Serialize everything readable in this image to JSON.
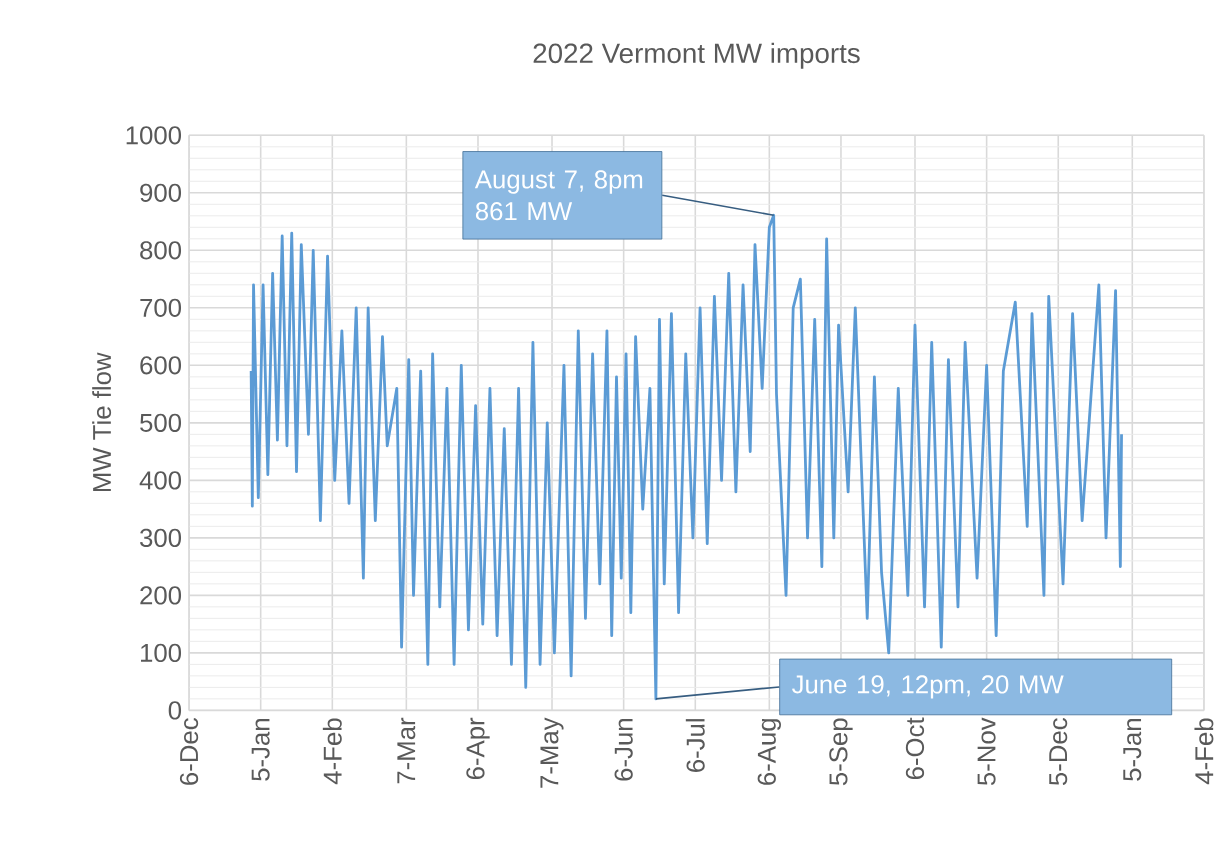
{
  "chart_data": {
    "type": "line",
    "title": "2022 Vermont MW imports",
    "ylabel": "MW Tie flow",
    "xlim": [
      "2021-12-06",
      "2023-02-04"
    ],
    "xticks": [
      {
        "value": "2021-12-06",
        "label": "6-Dec"
      },
      {
        "value": "2022-01-05",
        "label": "5-Jan"
      },
      {
        "value": "2022-02-04",
        "label": "4-Feb"
      },
      {
        "value": "2022-03-07",
        "label": "7-Mar"
      },
      {
        "value": "2022-04-06",
        "label": "6-Apr"
      },
      {
        "value": "2022-05-07",
        "label": "7-May"
      },
      {
        "value": "2022-06-06",
        "label": "6-Jun"
      },
      {
        "value": "2022-07-06",
        "label": "6-Jul"
      },
      {
        "value": "2022-08-06",
        "label": "6-Aug"
      },
      {
        "value": "2022-09-05",
        "label": "5-Sep"
      },
      {
        "value": "2022-10-06",
        "label": "6-Oct"
      },
      {
        "value": "2022-11-05",
        "label": "5-Nov"
      },
      {
        "value": "2022-12-05",
        "label": "5-Dec"
      },
      {
        "value": "2023-01-05",
        "label": "5-Jan"
      },
      {
        "value": "2023-02-04",
        "label": "4-Feb"
      }
    ],
    "ylim": [
      0,
      1000
    ],
    "yticks": [
      0,
      100,
      200,
      300,
      400,
      500,
      600,
      700,
      800,
      900,
      1000
    ],
    "grid": true,
    "series": [
      {
        "color": "#5b9bd5",
        "x": [
          "2022-01-01",
          "2022-01-01T12:00",
          "2022-01-02",
          "2022-01-04",
          "2022-01-06",
          "2022-01-08",
          "2022-01-10",
          "2022-01-12",
          "2022-01-14",
          "2022-01-16",
          "2022-01-18",
          "2022-01-20",
          "2022-01-22",
          "2022-01-25",
          "2022-01-27",
          "2022-01-30",
          "2022-02-02",
          "2022-02-05",
          "2022-02-08",
          "2022-02-11",
          "2022-02-14",
          "2022-02-17",
          "2022-02-19",
          "2022-02-22",
          "2022-02-25",
          "2022-02-27",
          "2022-03-03",
          "2022-03-05",
          "2022-03-08",
          "2022-03-10",
          "2022-03-13",
          "2022-03-16",
          "2022-03-18",
          "2022-03-21",
          "2022-03-24",
          "2022-03-27",
          "2022-03-30",
          "2022-04-02",
          "2022-04-05",
          "2022-04-08",
          "2022-04-11",
          "2022-04-14",
          "2022-04-17",
          "2022-04-20",
          "2022-04-23",
          "2022-04-26",
          "2022-04-29",
          "2022-05-02",
          "2022-05-05",
          "2022-05-08",
          "2022-05-12",
          "2022-05-15",
          "2022-05-18",
          "2022-05-21",
          "2022-05-24",
          "2022-05-27",
          "2022-05-30",
          "2022-06-01",
          "2022-06-03",
          "2022-06-05",
          "2022-06-07",
          "2022-06-09",
          "2022-06-11",
          "2022-06-14",
          "2022-06-17",
          "2022-06-19T12:00",
          "2022-06-21",
          "2022-06-23",
          "2022-06-26",
          "2022-06-29",
          "2022-07-02",
          "2022-07-05",
          "2022-07-08",
          "2022-07-11",
          "2022-07-14",
          "2022-07-17",
          "2022-07-20",
          "2022-07-23",
          "2022-07-26",
          "2022-07-29",
          "2022-07-31",
          "2022-08-03",
          "2022-08-06",
          "2022-08-07T20:00",
          "2022-08-09",
          "2022-08-13",
          "2022-08-16",
          "2022-08-19",
          "2022-08-22",
          "2022-08-25",
          "2022-08-28",
          "2022-08-30",
          "2022-09-02",
          "2022-09-04",
          "2022-09-08",
          "2022-09-11",
          "2022-09-16",
          "2022-09-19",
          "2022-09-22",
          "2022-09-25",
          "2022-09-29",
          "2022-10-03",
          "2022-10-06",
          "2022-10-10",
          "2022-10-13",
          "2022-10-17",
          "2022-10-20",
          "2022-10-24",
          "2022-10-27",
          "2022-11-01",
          "2022-11-05",
          "2022-11-09",
          "2022-11-12",
          "2022-11-17",
          "2022-11-22",
          "2022-11-24",
          "2022-11-29",
          "2022-12-01",
          "2022-12-07",
          "2022-12-11",
          "2022-12-15",
          "2022-12-22",
          "2022-12-25",
          "2022-12-29",
          "2022-12-31",
          "2022-12-31T12:00"
        ],
        "values": [
          590,
          355,
          740,
          370,
          740,
          410,
          760,
          470,
          825,
          460,
          830,
          415,
          810,
          480,
          800,
          330,
          790,
          400,
          660,
          360,
          700,
          230,
          700,
          330,
          650,
          460,
          560,
          110,
          610,
          200,
          590,
          80,
          620,
          180,
          560,
          80,
          600,
          140,
          530,
          150,
          560,
          130,
          490,
          80,
          560,
          40,
          640,
          80,
          500,
          100,
          600,
          60,
          660,
          160,
          620,
          220,
          660,
          130,
          580,
          230,
          620,
          170,
          650,
          350,
          560,
          20,
          680,
          220,
          690,
          170,
          620,
          300,
          700,
          290,
          720,
          400,
          760,
          380,
          740,
          450,
          810,
          560,
          840,
          861,
          550,
          200,
          700,
          750,
          300,
          680,
          250,
          820,
          300,
          670,
          380,
          700,
          160,
          580,
          240,
          100,
          560,
          200,
          670,
          180,
          640,
          110,
          610,
          180,
          640,
          230,
          600,
          130,
          590,
          710,
          320,
          690,
          200,
          720,
          220,
          690,
          330,
          740,
          300,
          730,
          250,
          480
        ]
      }
    ],
    "annotations": [
      {
        "text": "August 7, 8pm 861 MW",
        "x": "2022-08-07T20:00",
        "y": 861
      },
      {
        "text": "June 19, 12pm, 20 MW",
        "x": "2022-06-19T12:00",
        "y": 20
      }
    ]
  }
}
